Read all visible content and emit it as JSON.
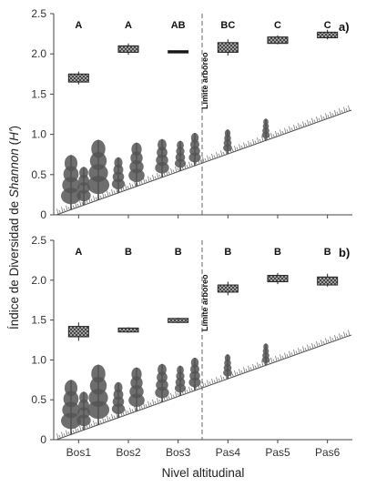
{
  "chart_data": [
    {
      "type": "box",
      "panel_label": "a)",
      "categories": [
        "Bos1",
        "Bos2",
        "Bos3",
        "Pas4",
        "Pas5",
        "Pas6"
      ],
      "values": [
        1.7,
        2.07,
        2.04,
        2.08,
        2.17,
        2.23
      ],
      "box_ranges": [
        [
          1.65,
          1.75
        ],
        [
          2.02,
          2.1
        ],
        [
          2.04,
          2.04
        ],
        [
          2.02,
          2.14
        ],
        [
          2.13,
          2.21
        ],
        [
          2.2,
          2.27
        ]
      ],
      "whiskers": [
        [
          1.62,
          1.78
        ],
        [
          1.99,
          2.13
        ],
        [
          2.04,
          2.04
        ],
        [
          1.98,
          2.18
        ],
        [
          2.12,
          2.23
        ],
        [
          2.18,
          2.3
        ]
      ],
      "letters": [
        "A",
        "A",
        "AB",
        "BC",
        "C",
        "C"
      ],
      "ylim": [
        0,
        2.5
      ],
      "yticks": [
        "0",
        "0.5",
        "1.0",
        "1.5",
        "2.0",
        "2.5"
      ],
      "limit_label": "Límite arbóreo"
    },
    {
      "type": "box",
      "panel_label": "b)",
      "categories": [
        "Bos1",
        "Bos2",
        "Bos3",
        "Pas4",
        "Pas5",
        "Pas6"
      ],
      "values": [
        1.35,
        1.38,
        1.5,
        1.89,
        2.02,
        1.99
      ],
      "box_ranges": [
        [
          1.29,
          1.42
        ],
        [
          1.35,
          1.4
        ],
        [
          1.47,
          1.52
        ],
        [
          1.85,
          1.94
        ],
        [
          1.98,
          2.06
        ],
        [
          1.94,
          2.04
        ]
      ],
      "whiskers": [
        [
          1.24,
          1.47
        ],
        [
          1.34,
          1.41
        ],
        [
          1.46,
          1.53
        ],
        [
          1.81,
          1.98
        ],
        [
          1.95,
          2.09
        ],
        [
          1.92,
          2.08
        ]
      ],
      "letters": [
        "A",
        "B",
        "B",
        "B",
        "B",
        "B"
      ],
      "ylim": [
        0,
        2.5
      ],
      "yticks": [
        "0",
        "0.5",
        "1.0",
        "1.5",
        "2.0",
        "2.5"
      ],
      "limit_label": "Límite arbóreo"
    }
  ],
  "axes": {
    "ylabel_prefix": "Índice de Diversidad de ",
    "ylabel_italic": "Shannon",
    "ylabel_suffix_open": " (",
    "ylabel_symbol": "H'",
    "ylabel_suffix_close": ")",
    "xlabel": "Nivel altitudinal"
  },
  "colors": {
    "box_fill": "#8a8a8a",
    "tree_fill": "#555555",
    "grass": "#777777"
  }
}
